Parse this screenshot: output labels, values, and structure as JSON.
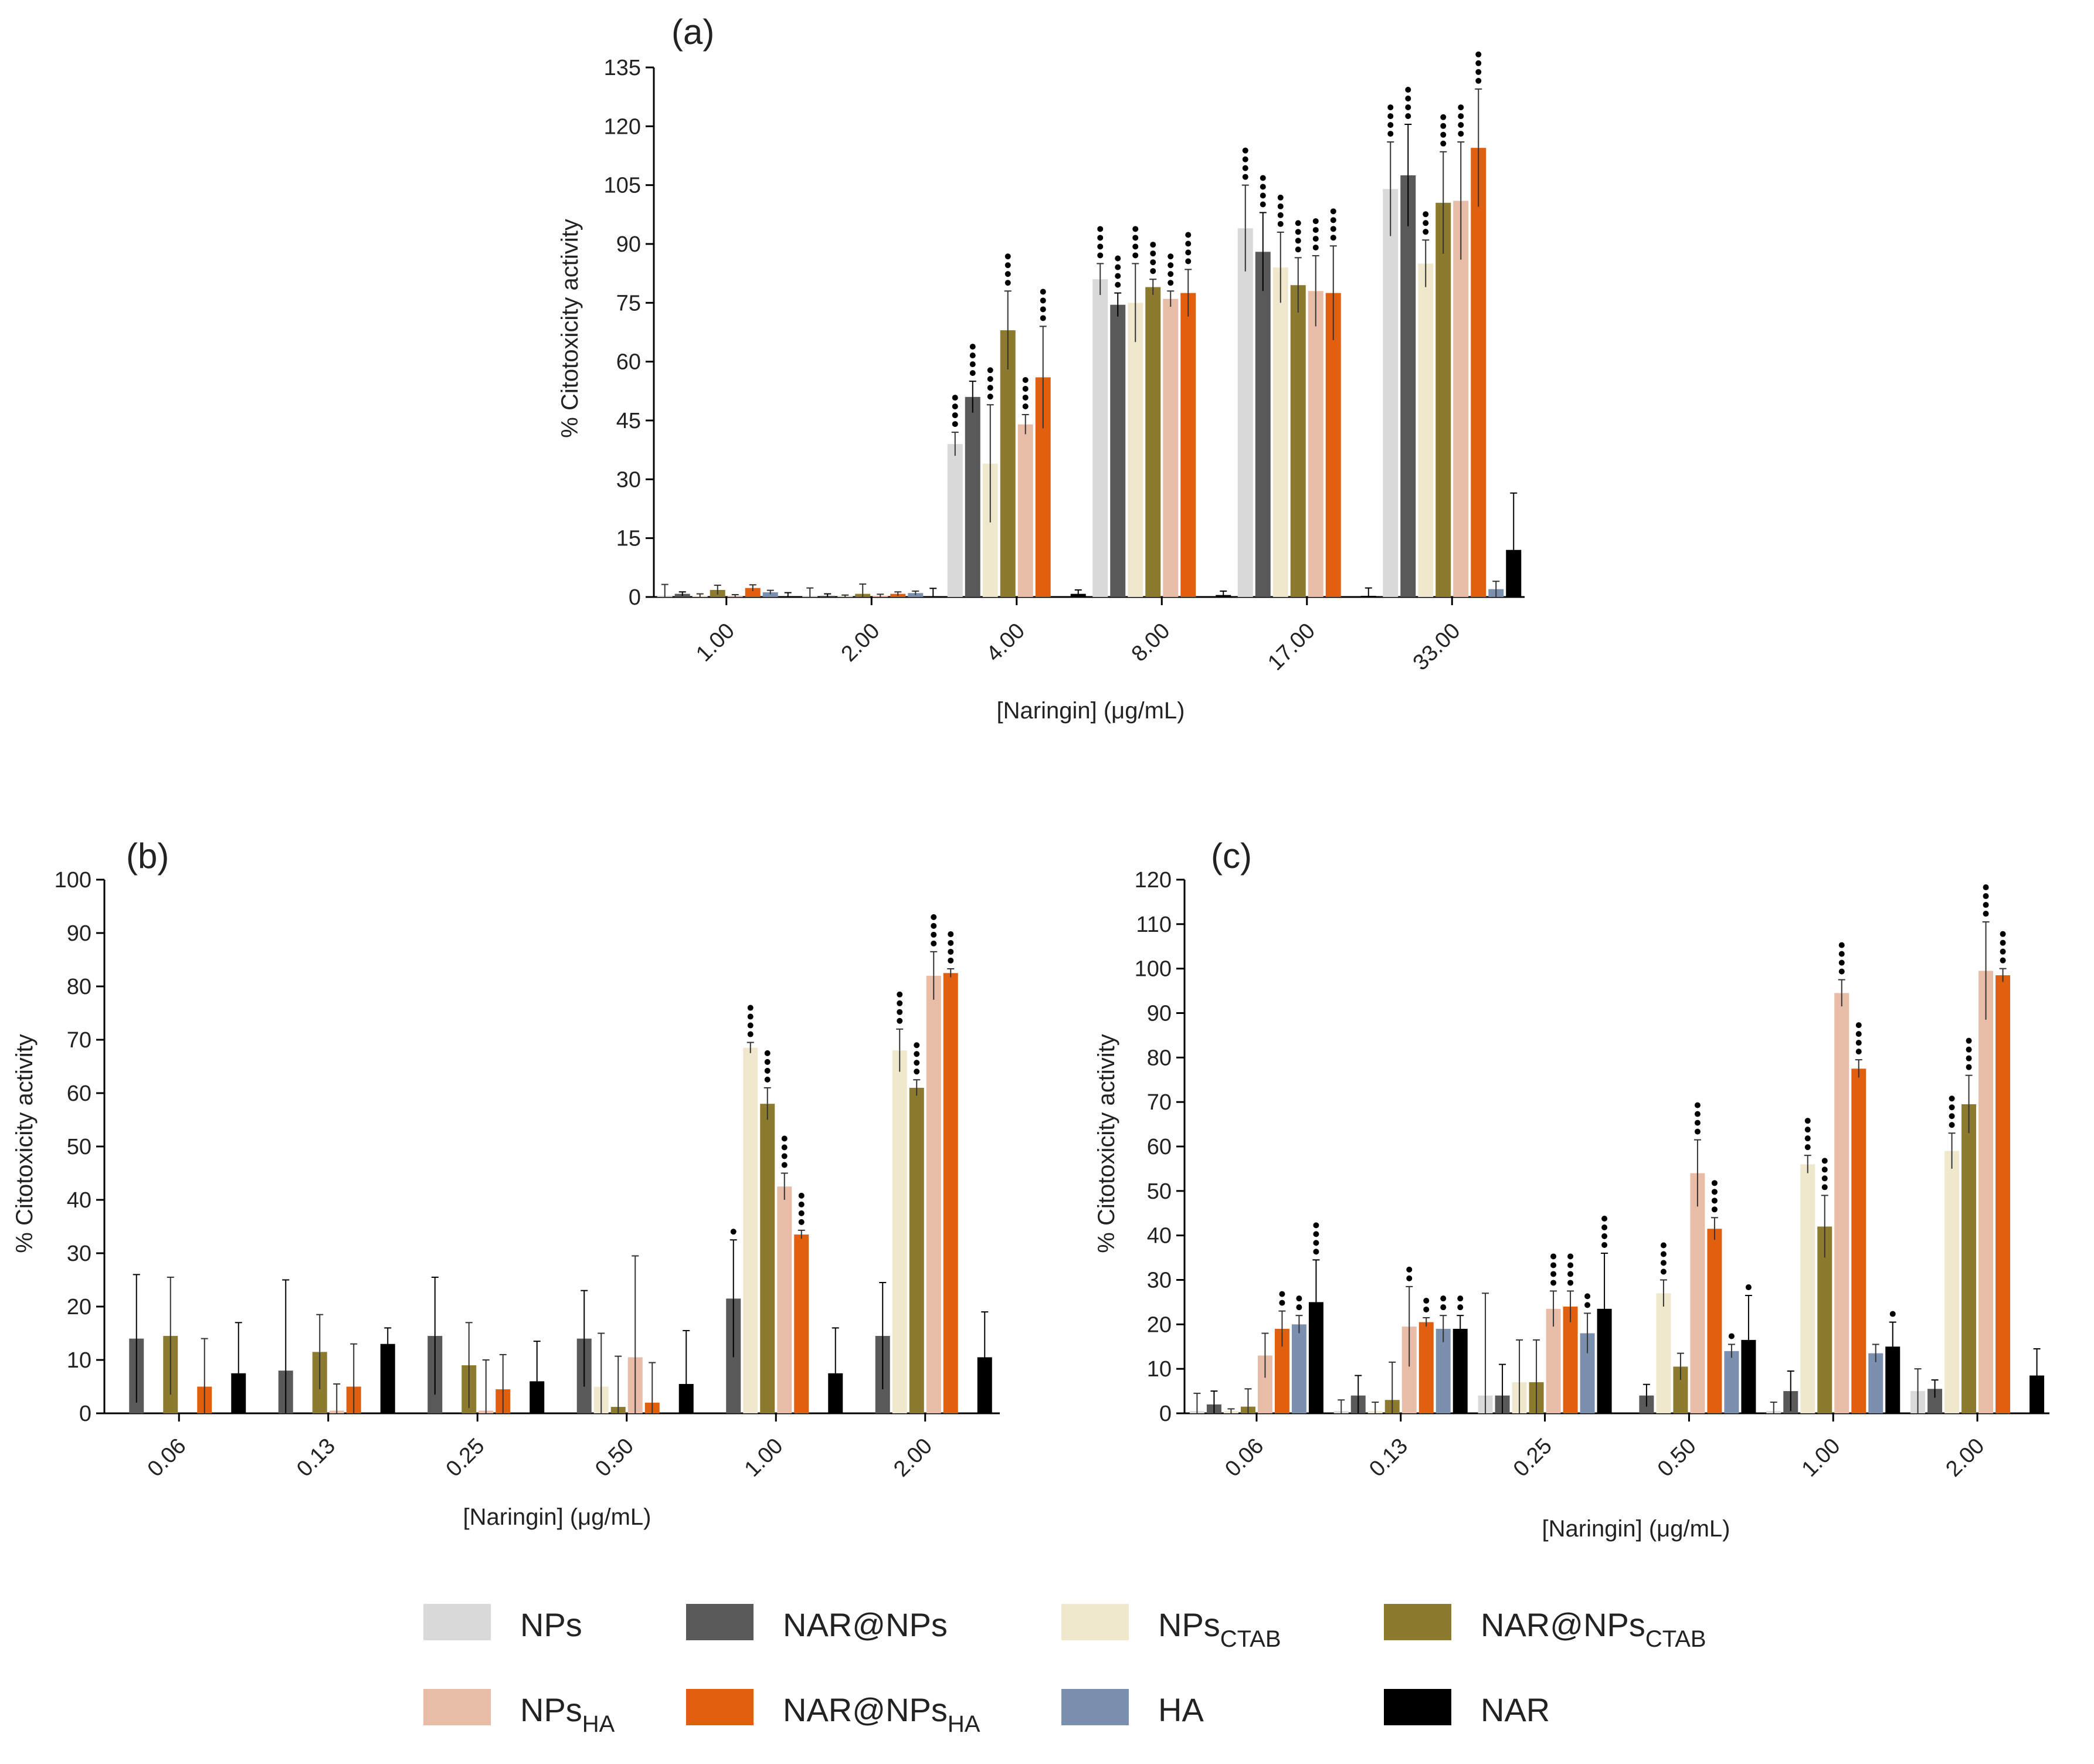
{
  "series_styles": [
    {
      "key": "NPs",
      "color": "#d9d9d9"
    },
    {
      "key": "NAR@NPs",
      "color": "#595959"
    },
    {
      "key": "NPs_CTAB",
      "color": "#efe8cd"
    },
    {
      "key": "NAR@NPs_CTAB",
      "color": "#8c7a2e"
    },
    {
      "key": "NPs_HA",
      "color": "#e8bca6"
    },
    {
      "key": "NAR@NPs_HA",
      "color": "#e06010"
    },
    {
      "key": "HA",
      "color": "#7b8fae"
    },
    {
      "key": "NAR",
      "color": "#000000"
    }
  ],
  "legend": {
    "items": [
      {
        "main": "NPs",
        "sub": ""
      },
      {
        "main": "NAR@NPs",
        "sub": ""
      },
      {
        "main": "NPs",
        "sub": "CTAB"
      },
      {
        "main": "NAR@NPs",
        "sub": "CTAB"
      },
      {
        "main": "NPs",
        "sub": "HA"
      },
      {
        "main": "NAR@NPs",
        "sub": "HA"
      },
      {
        "main": "HA",
        "sub": ""
      },
      {
        "main": "NAR",
        "sub": ""
      }
    ]
  },
  "chart_data": [
    {
      "type": "bar",
      "title": "(a)",
      "xlabel": "[Naringin] (μg/mL)",
      "ylabel": "% Citotoxicity activity",
      "ylim": [
        0,
        135
      ],
      "yticks": [
        0,
        15,
        30,
        45,
        60,
        75,
        90,
        105,
        120,
        135
      ],
      "categories": [
        "1.00",
        "2.00",
        "4.00",
        "8.00",
        "17.00",
        "33.00"
      ],
      "series": [
        {
          "name": "NPs",
          "values": [
            0.2,
            0.3,
            39,
            81,
            94,
            104
          ],
          "errors": [
            3,
            2,
            3,
            4,
            11,
            12
          ],
          "sig": [
            0,
            0,
            4,
            4,
            4,
            4
          ]
        },
        {
          "name": "NAR@NPs",
          "values": [
            0.8,
            0.3,
            51,
            74.5,
            88,
            107.5
          ],
          "errors": [
            0.5,
            0.5,
            4,
            3,
            10,
            13
          ],
          "sig": [
            0,
            0,
            4,
            4,
            4,
            4
          ]
        },
        {
          "name": "NPs_CTAB",
          "values": [
            0.3,
            0.2,
            34,
            75,
            84,
            85
          ],
          "errors": [
            0.5,
            0.3,
            15,
            10,
            9,
            6
          ],
          "sig": [
            0,
            0,
            4,
            4,
            4,
            3
          ]
        },
        {
          "name": "NAR@NPs_CTAB",
          "values": [
            1.8,
            0.8,
            68,
            79,
            79.5,
            100.5
          ],
          "errors": [
            1.2,
            2.5,
            10,
            2,
            7,
            13
          ],
          "sig": [
            0,
            0,
            4,
            4,
            4,
            4
          ]
        },
        {
          "name": "NPs_HA",
          "values": [
            0.2,
            0.3,
            44,
            76,
            78,
            101
          ],
          "errors": [
            0.4,
            0.4,
            2.5,
            2,
            9,
            15
          ],
          "sig": [
            0,
            0,
            4,
            4,
            4,
            4
          ]
        },
        {
          "name": "NAR@NPs_HA",
          "values": [
            2.3,
            0.8,
            56,
            77.5,
            77.5,
            114.5
          ],
          "errors": [
            0.8,
            0.5,
            13,
            6,
            12,
            15
          ],
          "sig": [
            0,
            0,
            4,
            4,
            4,
            4
          ]
        },
        {
          "name": "HA",
          "values": [
            1.2,
            1,
            0,
            0,
            0,
            2
          ],
          "errors": [
            0.5,
            0.5,
            0,
            0,
            0,
            2
          ],
          "sig": [
            0,
            0,
            0,
            0,
            0,
            0
          ]
        },
        {
          "name": "NAR",
          "values": [
            0.1,
            0.2,
            0.8,
            0.5,
            0.3,
            12
          ],
          "errors": [
            1,
            2,
            1,
            1,
            2,
            14.5
          ],
          "sig": [
            0,
            0,
            0,
            0,
            0,
            0
          ]
        }
      ]
    },
    {
      "type": "bar",
      "title": "(b)",
      "xlabel": "[Naringin] (μg/mL)",
      "ylabel": "% Citotoxicity activity",
      "ylim": [
        0,
        100
      ],
      "yticks": [
        0,
        10,
        20,
        30,
        40,
        50,
        60,
        70,
        80,
        90,
        100
      ],
      "categories": [
        "0.06",
        "0.13",
        "0.25",
        "0.50",
        "1.00",
        "2.00"
      ],
      "series": [
        {
          "name": "NPs",
          "values": [
            0,
            0,
            0,
            0,
            0,
            0
          ],
          "errors": [
            0,
            0,
            0,
            0,
            0,
            0
          ],
          "sig": [
            0,
            0,
            0,
            0,
            0,
            0
          ]
        },
        {
          "name": "NAR@NPs",
          "values": [
            14,
            8,
            14.5,
            14,
            21.5,
            14.5
          ],
          "errors": [
            12,
            17,
            11,
            9,
            11,
            10
          ],
          "sig": [
            0,
            0,
            0,
            0,
            1,
            0
          ]
        },
        {
          "name": "NPs_CTAB",
          "values": [
            0,
            0,
            0,
            5,
            68.5,
            68
          ],
          "errors": [
            0,
            0,
            0,
            10,
            1,
            4
          ],
          "sig": [
            0,
            0,
            0,
            0,
            4,
            4
          ]
        },
        {
          "name": "NAR@NPs_CTAB",
          "values": [
            14.5,
            11.5,
            9,
            1.2,
            58,
            61
          ],
          "errors": [
            11,
            7,
            8,
            9.5,
            3,
            1.5
          ],
          "sig": [
            0,
            0,
            0,
            0,
            4,
            4
          ]
        },
        {
          "name": "NPs_HA",
          "values": [
            0,
            0.5,
            0.5,
            10.5,
            42.5,
            82
          ],
          "errors": [
            0,
            5,
            9.5,
            19,
            2.5,
            4.5
          ],
          "sig": [
            0,
            0,
            0,
            0,
            4,
            4
          ]
        },
        {
          "name": "NAR@NPs_HA",
          "values": [
            5,
            5,
            4.5,
            2,
            33.5,
            82.5
          ],
          "errors": [
            9,
            8,
            6.5,
            7.5,
            0.8,
            0.8
          ],
          "sig": [
            0,
            0,
            0,
            0,
            4,
            4
          ]
        },
        {
          "name": "HA",
          "values": [
            0,
            0,
            0,
            0,
            0,
            0
          ],
          "errors": [
            0,
            0,
            0,
            0,
            0,
            0
          ],
          "sig": [
            0,
            0,
            0,
            0,
            0,
            0
          ]
        },
        {
          "name": "NAR",
          "values": [
            7.5,
            13,
            6,
            5.5,
            7.5,
            10.5
          ],
          "errors": [
            9.5,
            3,
            7.5,
            10,
            8.5,
            8.5
          ],
          "sig": [
            0,
            0,
            0,
            0,
            0,
            0
          ]
        }
      ]
    },
    {
      "type": "bar",
      "title": "(c)",
      "xlabel": "[Naringin] (μg/mL)",
      "ylabel": "% Citotoxicity activity",
      "ylim": [
        0,
        120
      ],
      "yticks": [
        0,
        10,
        20,
        30,
        40,
        50,
        60,
        70,
        80,
        90,
        100,
        110,
        120
      ],
      "categories": [
        "0.06",
        "0.13",
        "0.25",
        "0.50",
        "1.00",
        "2.00"
      ],
      "series": [
        {
          "name": "NPs",
          "values": [
            0.5,
            0.5,
            4,
            0,
            0.5,
            5
          ],
          "errors": [
            4,
            2.5,
            23,
            0,
            2,
            5
          ],
          "sig": [
            0,
            0,
            0,
            0,
            0,
            0
          ]
        },
        {
          "name": "NAR@NPs",
          "values": [
            2,
            4,
            4,
            4,
            5,
            5.5
          ],
          "errors": [
            3,
            4.5,
            7,
            2.5,
            4.5,
            2
          ],
          "sig": [
            0,
            0,
            0,
            0,
            0,
            0
          ]
        },
        {
          "name": "NPs_CTAB",
          "values": [
            0.5,
            0.5,
            7,
            27,
            56,
            59
          ],
          "errors": [
            0.5,
            2,
            9.5,
            3,
            2,
            4
          ],
          "sig": [
            0,
            0,
            0,
            4,
            4,
            4
          ]
        },
        {
          "name": "NAR@NPs_CTAB",
          "values": [
            1.5,
            3,
            7,
            10.5,
            42,
            69.5
          ],
          "errors": [
            4,
            8.5,
            9.5,
            3,
            7,
            6.5
          ],
          "sig": [
            0,
            0,
            0,
            0,
            4,
            4
          ]
        },
        {
          "name": "NPs_HA",
          "values": [
            13,
            19.5,
            23.5,
            54,
            94.5,
            99.5
          ],
          "errors": [
            5,
            9,
            4,
            7.5,
            3,
            11
          ],
          "sig": [
            0,
            2,
            4,
            4,
            4,
            4
          ]
        },
        {
          "name": "NAR@NPs_HA",
          "values": [
            19,
            20.5,
            24,
            41.5,
            77.5,
            98.5
          ],
          "errors": [
            4,
            1,
            3.5,
            2.5,
            2,
            1.5
          ],
          "sig": [
            2,
            2,
            4,
            4,
            4,
            4
          ]
        },
        {
          "name": "HA",
          "values": [
            20,
            19,
            18,
            14,
            13.5,
            0
          ],
          "errors": [
            2,
            3,
            4.5,
            1.5,
            2,
            0
          ],
          "sig": [
            2,
            2,
            2,
            1,
            0,
            0
          ]
        },
        {
          "name": "NAR",
          "values": [
            25,
            19,
            23.5,
            16.5,
            15,
            8.5
          ],
          "errors": [
            9.5,
            3,
            12.5,
            10,
            5.5,
            6
          ],
          "sig": [
            4,
            2,
            4,
            1,
            1,
            0
          ]
        }
      ]
    }
  ]
}
